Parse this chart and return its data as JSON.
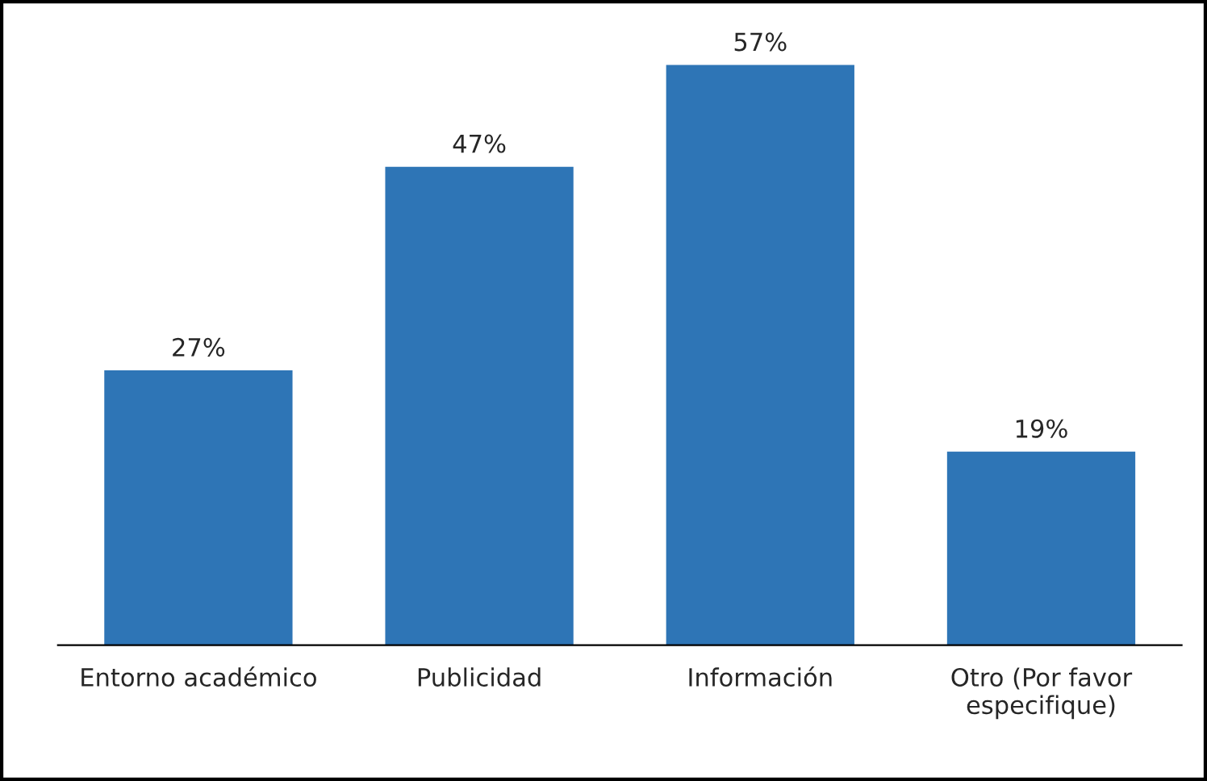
{
  "chart_data": {
    "type": "bar",
    "categories": [
      "Entorno académico",
      "Publicidad",
      "Información",
      "Otro (Por favor\nespecifique)"
    ],
    "values": [
      27,
      47,
      57,
      19
    ],
    "value_labels": [
      "27%",
      "47%",
      "57%",
      "19%"
    ],
    "color": "#2e75b6"
  }
}
